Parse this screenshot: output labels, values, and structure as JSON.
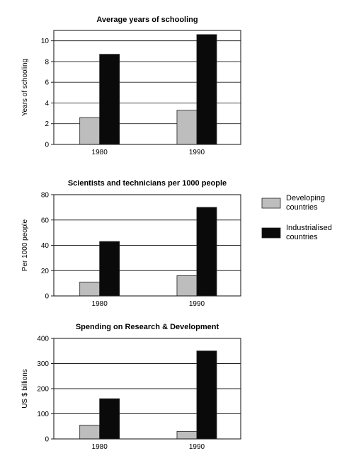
{
  "legend": {
    "items": [
      {
        "lines": [
          "Developing",
          "countries"
        ],
        "color": "#bdbdbd"
      },
      {
        "lines": [
          "Industrialised",
          "countries"
        ],
        "color": "#0a0a0a"
      }
    ]
  },
  "chart_data": [
    {
      "type": "bar",
      "title": "Average years of schooling",
      "xlabel": "",
      "ylabel": "Years of schooling",
      "categories": [
        "1980",
        "1990"
      ],
      "series": [
        {
          "name": "Developing countries",
          "values": [
            2.6,
            3.3
          ],
          "color": "#bdbdbd"
        },
        {
          "name": "Industrialised countries",
          "values": [
            8.7,
            10.6
          ],
          "color": "#0a0a0a"
        }
      ],
      "ylim": [
        0,
        11
      ],
      "yticks": [
        0,
        2,
        4,
        6,
        8,
        10
      ],
      "grid": true
    },
    {
      "type": "bar",
      "title": "Scientists and technicians per 1000 people",
      "xlabel": "",
      "ylabel": "Per 1000 people",
      "categories": [
        "1980",
        "1990"
      ],
      "series": [
        {
          "name": "Developing countries",
          "values": [
            11,
            16
          ],
          "color": "#bdbdbd"
        },
        {
          "name": "Industrialised countries",
          "values": [
            43,
            70
          ],
          "color": "#0a0a0a"
        }
      ],
      "ylim": [
        0,
        80
      ],
      "yticks": [
        0,
        20,
        40,
        60,
        80
      ],
      "grid": true
    },
    {
      "type": "bar",
      "title": "Spending on Research & Development",
      "xlabel": "",
      "ylabel": "US $ billions",
      "categories": [
        "1980",
        "1990"
      ],
      "series": [
        {
          "name": "Developing countries",
          "values": [
            55,
            30
          ],
          "color": "#bdbdbd"
        },
        {
          "name": "Industrialised countries",
          "values": [
            160,
            350
          ],
          "color": "#0a0a0a"
        }
      ],
      "ylim": [
        0,
        400
      ],
      "yticks": [
        0,
        100,
        200,
        300,
        400
      ],
      "grid": true
    }
  ]
}
